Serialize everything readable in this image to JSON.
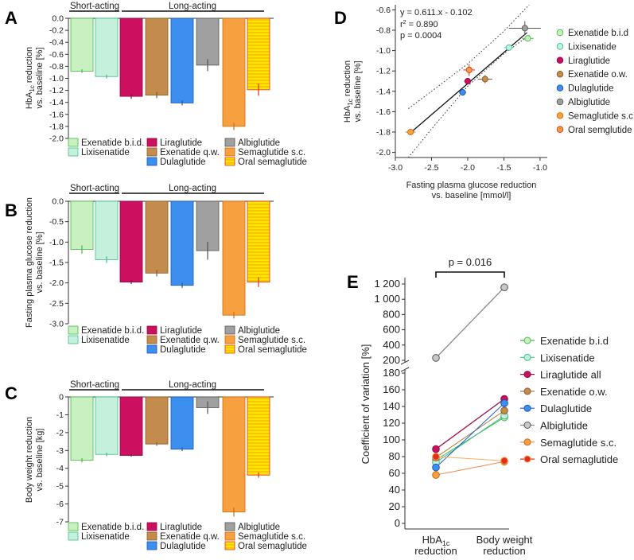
{
  "series_meta": [
    {
      "name": "Exenatide b.i.d.",
      "fill": "#c8f0c0",
      "stroke": "#49b847"
    },
    {
      "name": "Lixisenatide",
      "fill": "#c4f0dc",
      "stroke": "#3bbf8d"
    },
    {
      "name": "Liraglutide",
      "fill": "#cc0f5f",
      "stroke": "#8a0a3f"
    },
    {
      "name": "Exenatide q.w.",
      "fill": "#c48c4c",
      "stroke": "#8a5a2a"
    },
    {
      "name": "Dulaglutide",
      "fill": "#3d8fef",
      "stroke": "#1a55b0"
    },
    {
      "name": "Albiglutide",
      "fill": "#a0a0a0",
      "stroke": "#555555"
    },
    {
      "name": "Semaglutide s.c.",
      "fill": "#f6a040",
      "stroke": "#d06a10"
    },
    {
      "name": "Oral semaglutide",
      "fill": "#ffe600",
      "stroke": "#e0301a"
    }
  ],
  "group_labels": {
    "short": "Short-acting",
    "long": "Long-acting"
  },
  "chart_data": [
    {
      "panel": "A",
      "type": "bar",
      "ylabel_line1": "HbA",
      "ylabel_sub": "1c",
      "ylabel_line1_tail": " reduction",
      "ylabel_line2": "vs. baseline [%]",
      "categories": [
        "Exenatide b.i.d.",
        "Lixisenatide",
        "Liraglutide",
        "Exenatide q.w.",
        "Dulaglutide",
        "Albiglutide",
        "Semaglutide s.c.",
        "Oral semaglutide"
      ],
      "values": [
        -0.88,
        -0.97,
        -1.3,
        -1.28,
        -1.41,
        -0.78,
        -1.8,
        -1.19
      ],
      "errors": [
        0.03,
        0.03,
        0.04,
        0.05,
        0.04,
        0.1,
        0.06,
        0.1
      ],
      "ylim": [
        -2.0,
        0.0
      ],
      "yticks": [
        "0.0",
        "-0.2",
        "-0.4",
        "-0.6",
        "-0.8",
        "-1.0",
        "-1.2",
        "-1.4",
        "-1.6",
        "-1.8",
        "-2.0"
      ],
      "legend_labels": [
        "Exenatide b.i.d.",
        "Lixisenatide",
        "Liraglutide",
        "Exenatide q.w.",
        "Dulaglutide",
        "Albiglutide",
        "Semaglutide s.c.",
        "Oral semaglutide"
      ]
    },
    {
      "panel": "B",
      "type": "bar",
      "ylabel_line1": "Fasting plasma glucose reduction",
      "ylabel_line2": "vs. baseline [%]",
      "categories": [
        "Exenatide b.i.d.",
        "Lixisenatide",
        "Liraglutide",
        "Exenatide q.w.",
        "Dulaglutide",
        "Albiglutide",
        "Semaglutide s.c.",
        "Oral semaglutide"
      ],
      "values": [
        -1.18,
        -1.43,
        -1.98,
        -1.76,
        -2.06,
        -1.21,
        -2.79,
        -1.98
      ],
      "errors": [
        0.1,
        0.08,
        0.05,
        0.08,
        0.06,
        0.22,
        0.08,
        0.12
      ],
      "ylim": [
        -3.0,
        0.0
      ],
      "yticks": [
        "0.0",
        "-0.5",
        "-1.0",
        "-1.5",
        "-2.0",
        "-2.5",
        "-3.0"
      ],
      "legend_labels": [
        "Exenatide b.i.d.",
        "Lixisenatide",
        "Liraglutide",
        "Exenatide q.w.",
        "Dulaglutide",
        "Albiglutide",
        "Semaglutide s.c.",
        "Oral semaglutide"
      ]
    },
    {
      "panel": "C",
      "type": "bar",
      "ylabel_line1": "Body weight reduction",
      "ylabel_line2": "vs. baseline [kg]",
      "categories": [
        "Exenatide b.i.d.",
        "Lixisenatide",
        "Liraglutide",
        "Exenatide q.w.",
        "Dulaglutide",
        "Albiglutide",
        "Semaglutide s.c.",
        "Oral semaglutide"
      ],
      "values": [
        -3.55,
        -3.22,
        -3.28,
        -2.64,
        -2.93,
        -0.6,
        -6.45,
        -4.38
      ],
      "errors": [
        0.12,
        0.1,
        0.07,
        0.1,
        0.1,
        0.35,
        0.25,
        0.15
      ],
      "ylim": [
        -7.0,
        0.0
      ],
      "yticks": [
        "0",
        "-1",
        "-2",
        "-3",
        "-4",
        "-5",
        "-6",
        "-7"
      ],
      "legend_labels": [
        "Exenatide b.i.d.",
        "Lixisenatide",
        "Liraglutide",
        "Exenatide q.w.",
        "Dulaglutide",
        "Albiglutide",
        "Semaglutide s.c.",
        "Oral semaglutide"
      ]
    },
    {
      "panel": "D",
      "type": "scatter",
      "xlabel_line1": "Fasting plasma glucose reduction",
      "xlabel_line2": "vs. baseline [mmol/l]",
      "ylabel_line1": "HbA",
      "ylabel_sub": "1c",
      "ylabel_line1_tail": " reduction",
      "ylabel_line2": "vs. baseline [%]",
      "xlim": [
        -3.0,
        -0.9
      ],
      "ylim": [
        -2.05,
        -0.55
      ],
      "xticks": [
        "-3.0",
        "-2.5",
        "-2.0",
        "-1.5",
        "-1.0"
      ],
      "xtick_values": [
        -3.0,
        -2.5,
        -2.0,
        -1.5,
        -1.0
      ],
      "yticks": [
        "-0.6",
        "-0.8",
        "-1.0",
        "-1.2",
        "-1.4",
        "-1.6",
        "-1.8",
        "-2.0"
      ],
      "ytick_values": [
        -0.6,
        -0.8,
        -1.0,
        -1.2,
        -1.4,
        -1.6,
        -1.8,
        -2.0
      ],
      "points": [
        {
          "name": "Exenatide b.i.d",
          "x": -1.17,
          "y": -0.88,
          "xerr": 0.08,
          "yerr": 0.03
        },
        {
          "name": "Lixisenatide",
          "x": -1.43,
          "y": -0.97,
          "xerr": 0.06,
          "yerr": 0.03
        },
        {
          "name": "Liraglutide",
          "x": -2.0,
          "y": -1.3,
          "xerr": 0.05,
          "yerr": 0.03
        },
        {
          "name": "Exenatide o.w.",
          "x": -1.76,
          "y": -1.28,
          "xerr": 0.1,
          "yerr": 0.04
        },
        {
          "name": "Dulaglutide",
          "x": -2.07,
          "y": -1.41,
          "xerr": 0.05,
          "yerr": 0.03
        },
        {
          "name": "Albiglutide",
          "x": -1.21,
          "y": -0.78,
          "xerr": 0.22,
          "yerr": 0.07
        },
        {
          "name": "Semaglutide s.c.",
          "x": -2.79,
          "y": -1.8,
          "xerr": 0.07,
          "yerr": 0.03
        },
        {
          "name": "Oral semglutide",
          "x": -1.98,
          "y": -1.19,
          "xerr": 0.08,
          "yerr": 0.06
        }
      ],
      "regression": {
        "slope": 0.611,
        "intercept": -0.102
      },
      "ci_band": [
        {
          "x": -2.82,
          "lo": -2.05,
          "hi": -1.57
        },
        {
          "x": -2.5,
          "lo": -1.77,
          "hi": -1.4
        },
        {
          "x": -2.0,
          "lo": -1.35,
          "hi": -1.13
        },
        {
          "x": -1.5,
          "lo": -1.03,
          "hi": -0.81
        },
        {
          "x": -1.15,
          "lo": -0.85,
          "hi": -0.55
        }
      ],
      "equation": "y = 0.611.x - 0.102",
      "r2_prefix": "r",
      "r2_sup": "2",
      "r2_value": " = 0.890",
      "p_text": "p = 0.0004",
      "legend_labels": [
        "Exenatide b.i.d",
        "Lixisenatide",
        "Liraglutide",
        "Exenatide o.w.",
        "Dulaglutide",
        "Albiglutide",
        "Semaglutide s.c.",
        "Oral semglutide"
      ]
    },
    {
      "panel": "E",
      "type": "line",
      "ylabel": "Coefficient of variation [%]",
      "categories_line1": [
        "HbA",
        "Body weight"
      ],
      "category1_sub": "1c",
      "categories_line2": [
        "reduction",
        "reduction"
      ],
      "upper_yticks": [
        "1 200",
        "1 000",
        "800",
        "600",
        "400",
        "200"
      ],
      "upper_ytick_values": [
        1200,
        1000,
        800,
        600,
        400,
        200
      ],
      "lower_yticks": [
        "180",
        "160",
        "140",
        "120",
        "100",
        "80",
        "60",
        "40",
        "20",
        "0"
      ],
      "lower_ytick_values": [
        180,
        160,
        140,
        120,
        100,
        80,
        60,
        40,
        20,
        0
      ],
      "series": [
        {
          "name": "Exenatide b.i.d",
          "values": [
            76,
            127
          ]
        },
        {
          "name": "Lixisenatide",
          "values": [
            73,
            129
          ]
        },
        {
          "name": "Liraglutide all",
          "values": [
            89,
            149
          ]
        },
        {
          "name": "Exenatide o.w.",
          "values": [
            79,
            135
          ]
        },
        {
          "name": "Dulaglutide",
          "values": [
            67,
            144
          ]
        },
        {
          "name": "Albiglutide",
          "values": [
            232,
            1156
          ]
        },
        {
          "name": "Semaglutide s.c.",
          "values": [
            58,
            74
          ]
        },
        {
          "name": "Oral semaglutide",
          "values": [
            80,
            75
          ]
        }
      ],
      "significance": "p = 0.016",
      "legend_labels": [
        "Exenatide b.i.d",
        "Lixisenatide",
        "Liraglutide all",
        "Exenatide o.w.",
        "Dulaglutide",
        "Albiglutide",
        "Semaglutide s.c.",
        "Oral semaglutide"
      ]
    }
  ]
}
